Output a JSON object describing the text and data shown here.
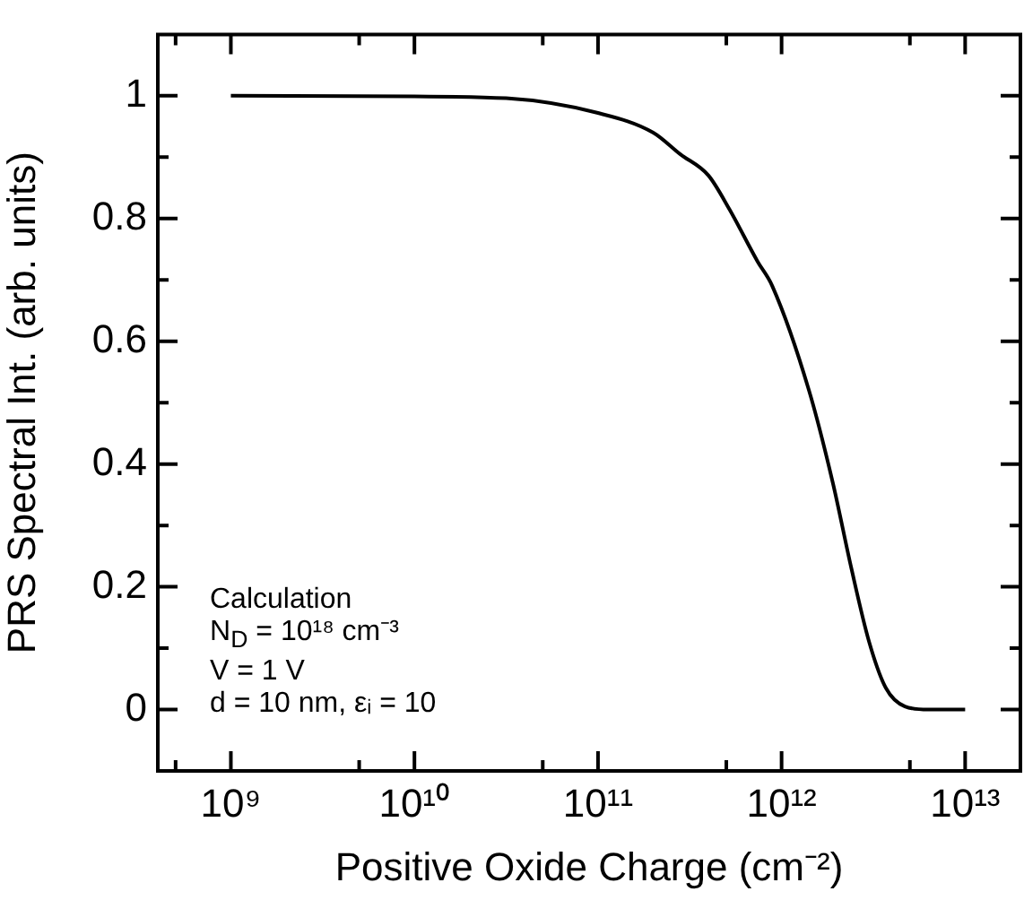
{
  "chart_data": {
    "type": "line",
    "xlabel": "Positive Oxide Charge (cm⁻²)",
    "ylabel": "PRS Spectral Int. (arb. units)",
    "log": "x",
    "grid": false,
    "legend": false,
    "marker": "none",
    "line_style": "solid",
    "xlim": [
      400000000.0,
      20000000000000.0
    ],
    "xticks": [
      {
        "value": 500000000.0,
        "label": null
      },
      {
        "value": 1000000000.0,
        "label": "10⁹"
      },
      {
        "value": 5000000000.0,
        "label": null
      },
      {
        "value": 10000000000.0,
        "label": "10¹⁰"
      },
      {
        "value": 50000000000.0,
        "label": null
      },
      {
        "value": 100000000000.0,
        "label": "10¹¹"
      },
      {
        "value": 500000000000.0,
        "label": null
      },
      {
        "value": 1000000000000.0,
        "label": "10¹²"
      },
      {
        "value": 5000000000000.0,
        "label": null
      },
      {
        "value": 10000000000000.0,
        "label": "10¹³"
      }
    ],
    "ylim": [
      -0.1,
      1.1
    ],
    "yticks": [
      0,
      {
        "value": 0.1,
        "label": null
      },
      0.2,
      {
        "value": 0.3,
        "label": null
      },
      0.4,
      {
        "value": 0.5,
        "label": null
      },
      0.6,
      {
        "value": 0.7,
        "label": null
      },
      0.8,
      {
        "value": 0.9,
        "label": null
      },
      1
    ],
    "x": [
      1000000000.0,
      10000000000.0,
      31600000000.0,
      100000000000.0,
      200000000000.0,
      280000000000.0,
      400000000000.0,
      520000000000.0,
      740000000000.0,
      890000000000.0,
      1410000000000.0,
      1900000000000.0,
      2400000000000.0,
      3000000000000.0,
      3700000000000.0,
      4700000000000.0,
      6300000000000.0,
      10000000000000.0
    ],
    "series": [
      {
        "color": "#000000",
        "values": [
          1,
          0.999,
          0.996,
          0.972,
          0.94,
          0.905,
          0.87,
          0.815,
          0.73,
          0.69,
          0.52,
          0.37,
          0.23,
          0.11,
          0.035,
          0.005,
          0,
          0
        ]
      }
    ],
    "annotations": [
      "Calculation",
      "N$_{D}$ = 10¹⁸ cm⁻³",
      "V = 1 V",
      "d = 10 nm, εᵢ = 10"
    ]
  }
}
